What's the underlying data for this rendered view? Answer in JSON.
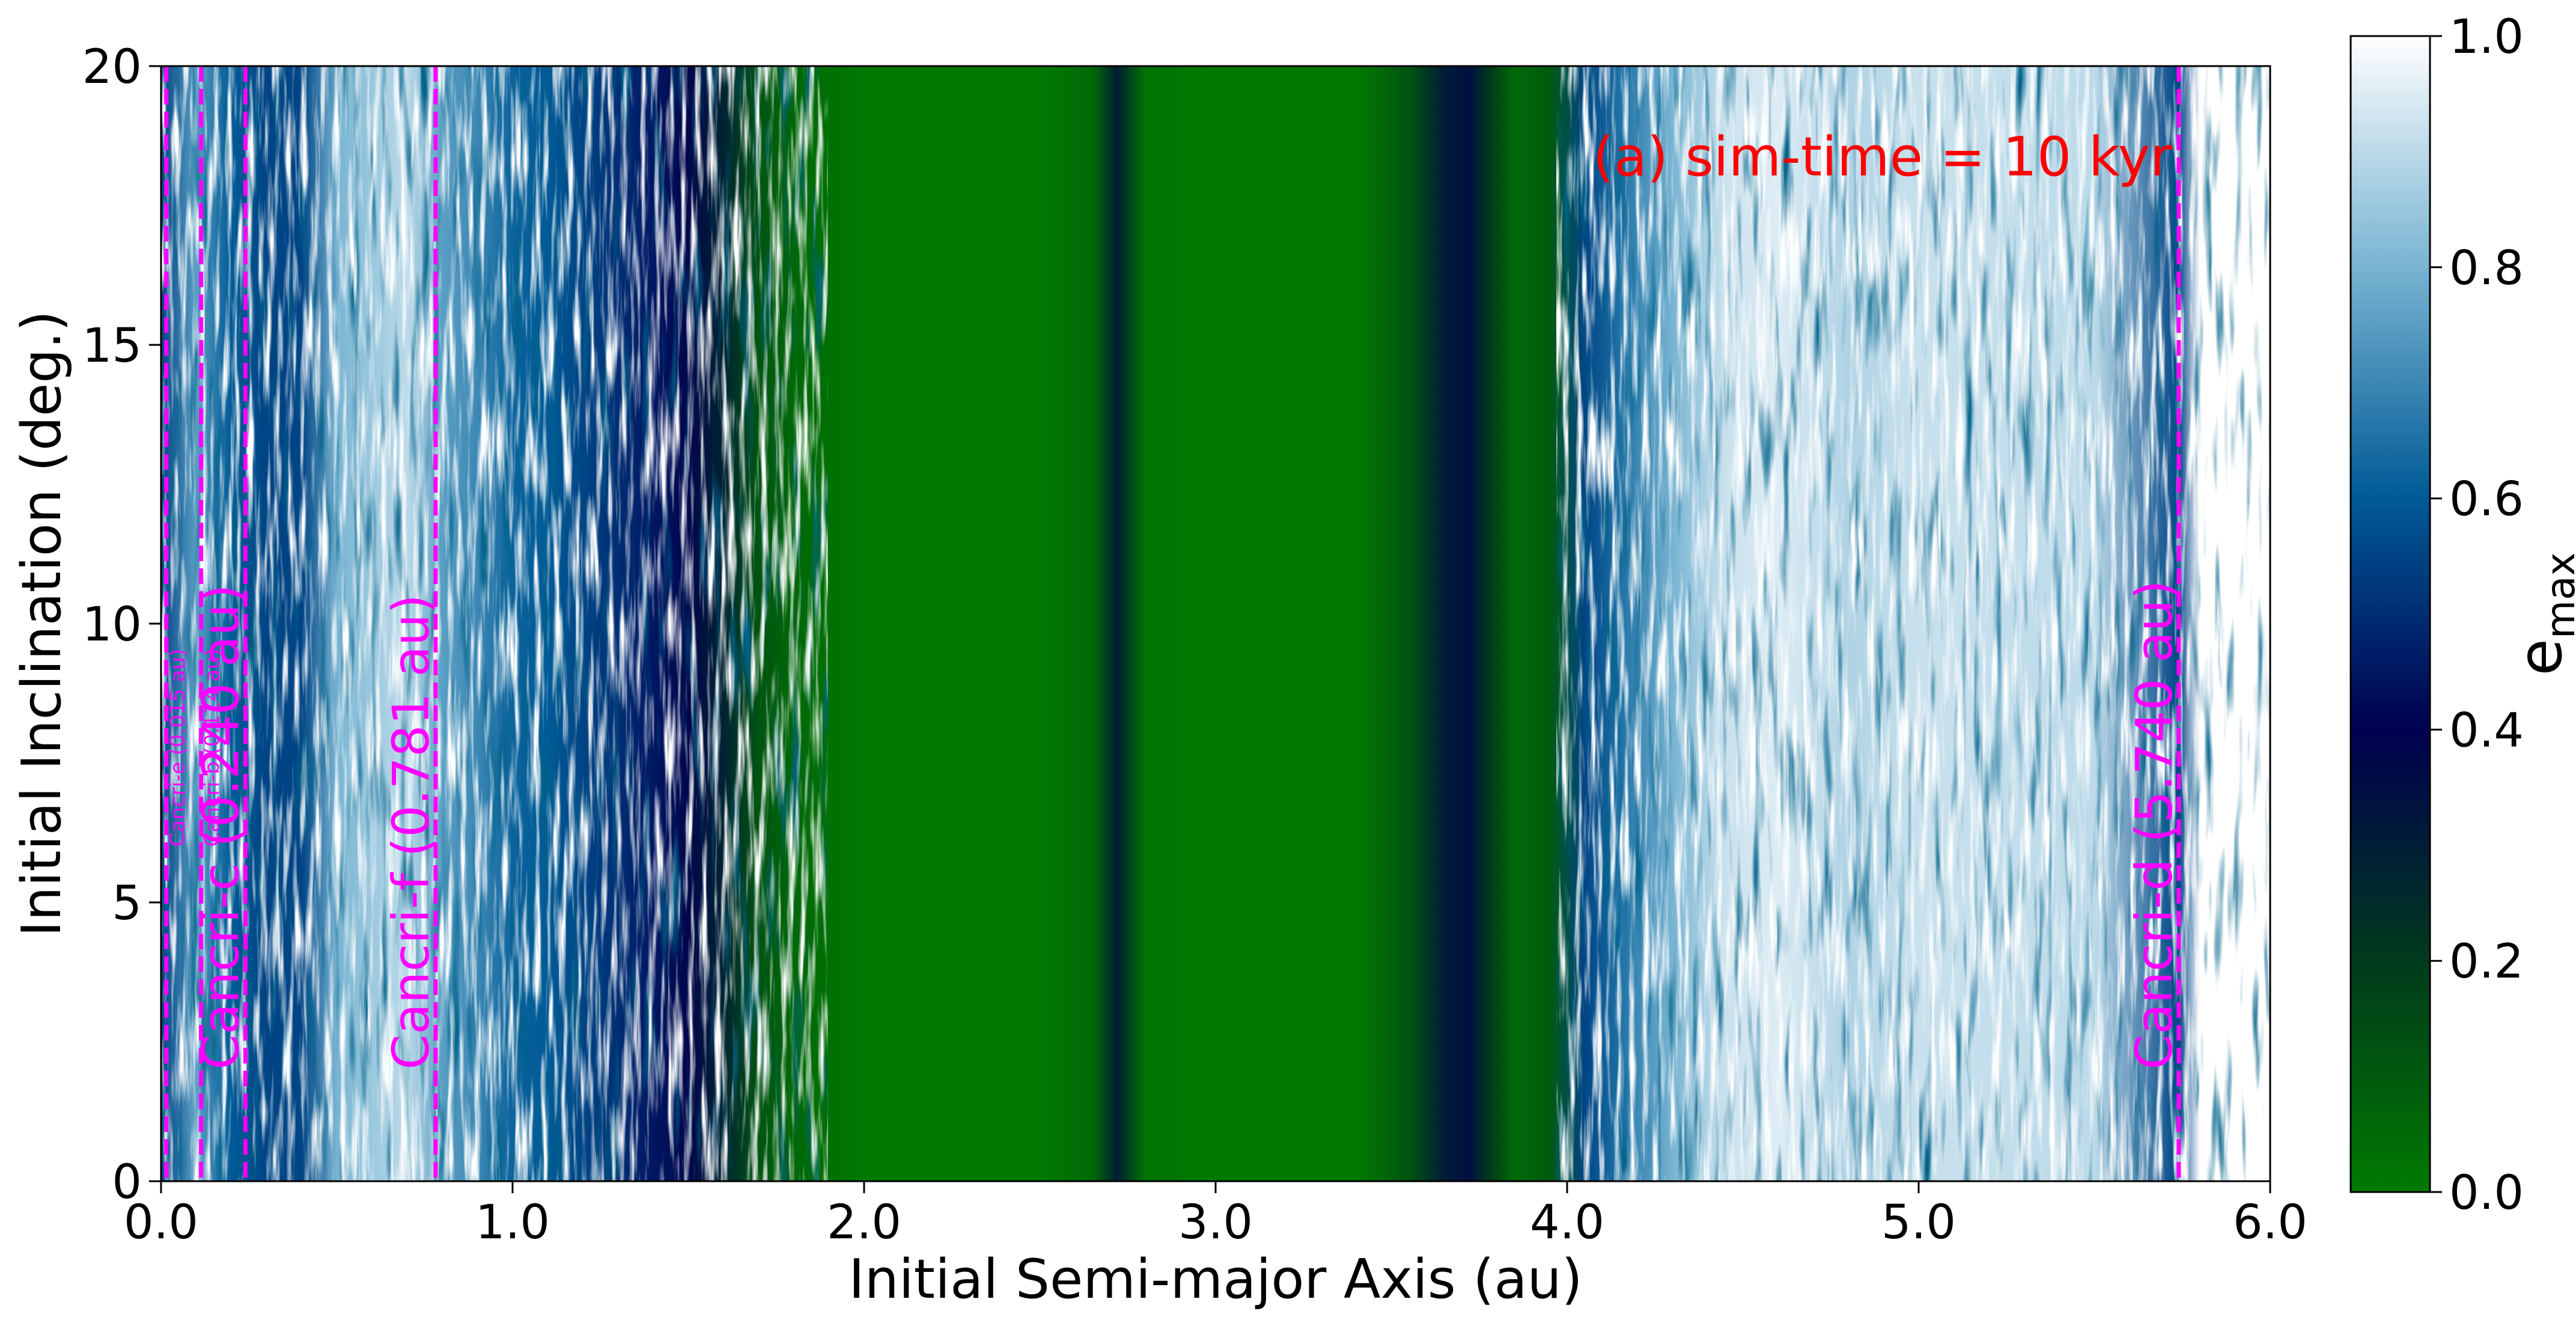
{
  "chart_data": {
    "type": "heatmap",
    "title": "",
    "annotation": "(a) sim-time = 10 kyr",
    "xlabel": "Initial Semi-major Axis (au)",
    "ylabel": "Initial Inclination (deg.)",
    "xlim": [
      0.0,
      6.0
    ],
    "ylim": [
      0,
      20
    ],
    "x_ticks": [
      0.0,
      1.0,
      2.0,
      3.0,
      4.0,
      5.0,
      6.0
    ],
    "x_tick_labels": [
      "0.0",
      "1.0",
      "2.0",
      "3.0",
      "4.0",
      "5.0",
      "6.0"
    ],
    "y_ticks": [
      0,
      5,
      10,
      15,
      20
    ],
    "y_tick_labels": [
      "0",
      "5",
      "10",
      "15",
      "20"
    ],
    "colorbar": {
      "label_main": "e",
      "label_sub": "max",
      "range": [
        0.0,
        1.0
      ],
      "ticks": [
        0.0,
        0.2,
        0.4,
        0.6,
        0.8,
        1.0
      ],
      "tick_labels": [
        "0.0",
        "0.2",
        "0.4",
        "0.6",
        "0.8",
        "1.0"
      ],
      "colormap": [
        "#007a00",
        "#003a1c",
        "#000050",
        "#005a96",
        "#78b4d2",
        "#ffffff"
      ]
    },
    "planet_lines": [
      {
        "a": 0.015,
        "label": "Cancri-e (0.015 au)",
        "size": "small"
      },
      {
        "a": 0.114,
        "label": "Cancri-b (0.114 au)",
        "size": "small"
      },
      {
        "a": 0.24,
        "label": "Cancri-c (0.240 au)",
        "size": "large"
      },
      {
        "a": 0.781,
        "label": "Cancri-f (0.781 au)",
        "size": "large"
      },
      {
        "a": 5.74,
        "label": "Cancri-d (5.740 au)",
        "size": "large"
      }
    ],
    "planet_line_color": "#ff00ff",
    "annotation_color": "#ff0000",
    "emax_profile": {
      "a": [
        0.0,
        0.1,
        0.2,
        0.3,
        0.4,
        0.5,
        0.6,
        0.7,
        0.8,
        0.9,
        1.0,
        1.1,
        1.2,
        1.3,
        1.4,
        1.5,
        1.6,
        1.7,
        1.8,
        1.9,
        2.0,
        2.5,
        2.65,
        2.72,
        2.8,
        3.0,
        3.4,
        3.55,
        3.65,
        3.72,
        3.78,
        3.85,
        3.95,
        4.05,
        4.15,
        4.3,
        4.45,
        4.6,
        4.8,
        5.0,
        5.5,
        5.74,
        5.8,
        6.0
      ],
      "emax": [
        0.55,
        0.75,
        0.6,
        0.55,
        0.55,
        0.8,
        0.85,
        0.9,
        0.75,
        0.7,
        0.62,
        0.6,
        0.55,
        0.5,
        0.45,
        0.38,
        0.28,
        0.12,
        0.06,
        0.03,
        0.0,
        0.0,
        0.05,
        0.3,
        0.02,
        0.0,
        0.0,
        0.12,
        0.3,
        0.35,
        0.2,
        0.05,
        0.1,
        0.55,
        0.65,
        0.8,
        0.92,
        0.95,
        0.88,
        0.92,
        0.9,
        0.55,
        1.0,
        1.0
      ]
    }
  }
}
